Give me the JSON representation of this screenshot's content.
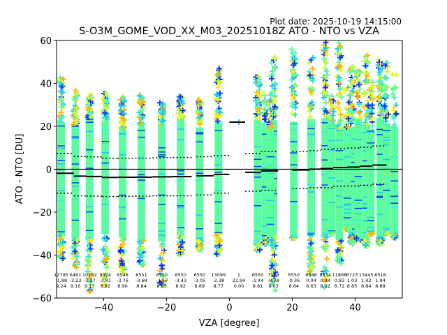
{
  "chart_data": {
    "type": "scatter",
    "title": "S-O3M_GOME_VOD_XX_M03_20251018Z ATO - NTO vs VZA",
    "plot_date": "Plot date: 2025-10-19 14:15:00",
    "xlabel": "VZA [degree]",
    "ylabel": "ATO - NTO [DU]",
    "xlim": [
      -55,
      55
    ],
    "ylim": [
      -60,
      60
    ],
    "xticks": [
      -40,
      -20,
      0,
      20,
      40
    ],
    "xtick_labels": [
      "−40",
      "−20",
      "0",
      "20",
      "40"
    ],
    "yticks": [
      -60,
      -40,
      -20,
      0,
      20,
      40,
      60
    ],
    "ytick_labels": [
      "−60",
      "−40",
      "−20",
      "0",
      "20",
      "40",
      "60"
    ],
    "grid": false,
    "zero_line": 0,
    "marker": "plus",
    "marker_colors": [
      "#5efca0",
      "#3ef0c8",
      "#1ec8f8",
      "#0a3cf0",
      "#f8e81a",
      "#fcb40a",
      "#d6f83a"
    ],
    "bins": [
      {
        "vza_center": -53.5,
        "vza_range": [
          -55,
          -49.5
        ],
        "count": "12785",
        "mean": -1.88,
        "std": 9.24,
        "mean_label": "-1.88",
        "std_label": "9.24",
        "top": 43,
        "bottom": -42
      },
      {
        "vza_center": -49.0,
        "vza_range": [
          -49.5,
          -45.5
        ],
        "count": "6461",
        "mean": -3.23,
        "std": 9.16,
        "mean_label": "-3.23",
        "std_label": "9.16",
        "top": 37,
        "bottom": -46
      },
      {
        "vza_center": -44.5,
        "vza_range": [
          -45.5,
          -40.5
        ],
        "count": "10152",
        "mean": -3.37,
        "std": 9.13,
        "mean_label": "-3.37",
        "std_label": "9.13",
        "top": 36,
        "bottom": -58
      },
      {
        "vza_center": -39.5,
        "vza_range": [
          -40.5,
          -35.5
        ],
        "count": "9374",
        "mean": -3.81,
        "std": 8.92,
        "mean_label": "-3.81",
        "std_label": "8.92",
        "top": 36,
        "bottom": -55
      },
      {
        "vza_center": -34.0,
        "vza_range": [
          -35.5,
          -30.0
        ],
        "count": "6546",
        "mean": -3.76,
        "std": 8.9,
        "mean_label": "-3.76",
        "std_label": "8.90",
        "top": 34,
        "bottom": -50
      },
      {
        "vza_center": -28.0,
        "vza_range": [
          -30.0,
          -24.5
        ],
        "count": "6551",
        "mean": -3.68,
        "std": 8.84,
        "mean_label": "-3.68",
        "std_label": "8.84",
        "top": 35,
        "bottom": -45
      },
      {
        "vza_center": -21.5,
        "vza_range": [
          -24.5,
          -18.0
        ],
        "count": "6550",
        "mean": -3.53,
        "std": 8.85,
        "mean_label": "-3.53",
        "std_label": "8.85",
        "top": 31,
        "bottom": -57
      },
      {
        "vza_center": -15.5,
        "vza_range": [
          -18.0,
          -12.0
        ],
        "count": "6550",
        "mean": -3.43,
        "std": 8.92,
        "mean_label": "-3.43",
        "std_label": "8.92",
        "top": 34,
        "bottom": -40
      },
      {
        "vza_center": -9.5,
        "vza_range": [
          -10.5,
          -5.0
        ],
        "count": "6550",
        "mean": -3.05,
        "std": 8.89,
        "mean_label": "-3.05",
        "std_label": "8.89",
        "top": 33,
        "bottom": -38
      },
      {
        "vza_center": -3.5,
        "vza_range": [
          -5.0,
          0.0
        ],
        "count": "13099",
        "mean": -2.38,
        "std": 8.77,
        "mean_label": "-2.38",
        "std_label": "8.77",
        "top": 47,
        "bottom": -40
      },
      {
        "vza_center": 3.0,
        "vza_range": [
          0.0,
          5.0
        ],
        "count": "1",
        "mean": 21.94,
        "std": 0.0,
        "mean_label": "21.94",
        "std_label": "0.00",
        "top": 22,
        "bottom": 22
      },
      {
        "vza_center": 9.0,
        "vza_range": [
          5.0,
          10.0
        ],
        "count": "6550",
        "mean": -1.44,
        "std": 8.81,
        "mean_label": "-1.44",
        "std_label": "8.81",
        "top": 44,
        "bottom": -38
      },
      {
        "vza_center": 14.0,
        "vza_range": [
          10.0,
          15.5
        ],
        "count": "7118",
        "mean": -0.78,
        "std": 9.03,
        "mean_label": "-0.78",
        "std_label": "9.03",
        "top": 52,
        "bottom": -57
      },
      {
        "vza_center": 20.5,
        "vza_range": [
          20.0,
          25.5
        ],
        "count": "6550",
        "mean": -0.36,
        "std": 8.64,
        "mean_label": "-0.36",
        "std_label": "8.64",
        "top": 56,
        "bottom": -32
      },
      {
        "vza_center": 26.0,
        "vza_range": [
          25.5,
          29.0
        ],
        "count": "6548",
        "mean": 0.04,
        "std": 8.63,
        "mean_label": "0.04",
        "std_label": "8.63",
        "top": 52,
        "bottom": -49
      },
      {
        "vza_center": 30.5,
        "vza_range": [
          29.0,
          33.0
        ],
        "count": "8534",
        "mean": 0.34,
        "std": 8.92,
        "mean_label": "0.34",
        "std_label": "8.92",
        "top": 60,
        "bottom": -57
      },
      {
        "vza_center": 35.0,
        "vza_range": [
          33.0,
          37.5
        ],
        "count": "11868",
        "mean": 0.83,
        "std": 8.72,
        "mean_label": "0.83",
        "std_label": "8.72",
        "top": 59,
        "bottom": -45
      },
      {
        "vza_center": 39.0,
        "vza_range": [
          37.5,
          41.5
        ],
        "count": "6723",
        "mean": 1.03,
        "std": 8.85,
        "mean_label": "1.03",
        "std_label": "8.85",
        "top": 48,
        "bottom": -35
      },
      {
        "vza_center": 43.5,
        "vza_range": [
          41.5,
          45.5
        ],
        "count": "13445",
        "mean": 1.42,
        "std": 8.84,
        "mean_label": "1.42",
        "std_label": "8.84",
        "top": 53,
        "bottom": -36
      },
      {
        "vza_center": 48.0,
        "vza_range": [
          45.5,
          50.0
        ],
        "count": "6518",
        "mean": 1.94,
        "std": 8.88,
        "mean_label": "1.94",
        "std_label": "8.88",
        "top": 51,
        "bottom": -35
      }
    ],
    "extra_columns": [
      {
        "vza_center": 32.5,
        "top": 35,
        "bottom": -30
      },
      {
        "vza_center": 37.5,
        "top": 40,
        "bottom": -28
      },
      {
        "vza_center": 41.0,
        "top": 46,
        "bottom": -33
      },
      {
        "vza_center": 45.0,
        "top": 42,
        "bottom": -30
      },
      {
        "vza_center": 50.0,
        "top": 50,
        "bottom": -30
      },
      {
        "vza_center": 52.5,
        "top": 46,
        "bottom": -32
      },
      {
        "vza_center": 11.5,
        "top": 37,
        "bottom": -35
      },
      {
        "vza_center": 13.0,
        "top": 35,
        "bottom": -33
      }
    ]
  }
}
